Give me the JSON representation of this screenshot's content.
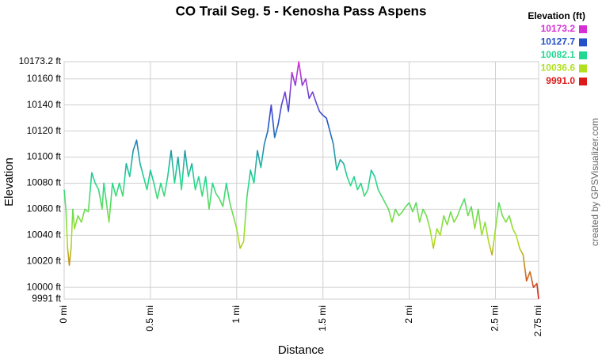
{
  "chart_data": {
    "type": "line",
    "title": "CO Trail Seg. 5 - Kenosha Pass Aspens",
    "x_label": "Distance",
    "y_label": "Elevation",
    "credit": "created by GPSVisualizer.com",
    "legend_title": "Elevation (ft)",
    "colorscale": [
      {
        "value": 10173.2,
        "color": "#d62fd6"
      },
      {
        "value": 10127.7,
        "color": "#2450c8"
      },
      {
        "value": 10082.1,
        "color": "#20d890"
      },
      {
        "value": 10036.6,
        "color": "#b0e020"
      },
      {
        "value": 9991,
        "label": "9991.0",
        "color": "#dd1a1a"
      }
    ],
    "grid": true,
    "xlim": [
      0,
      2.75
    ],
    "ylim": [
      9991,
      10173.2
    ],
    "xticks": [
      {
        "value": 0,
        "label": "0 mi"
      },
      {
        "value": 0.5,
        "label": "0.5 mi"
      },
      {
        "value": 1,
        "label": "1 mi"
      },
      {
        "value": 1.5,
        "label": "1.5 mi"
      },
      {
        "value": 2,
        "label": "2 mi"
      },
      {
        "value": 2.5,
        "label": "2.5 mi"
      },
      {
        "value": 2.75,
        "label": "2.75 mi"
      }
    ],
    "yticks": [
      {
        "value": 9991,
        "label": "9991 ft"
      },
      {
        "value": 10000,
        "label": "10000 ft"
      },
      {
        "value": 10020,
        "label": "10020 ft"
      },
      {
        "value": 10040,
        "label": "10040 ft"
      },
      {
        "value": 10060,
        "label": "10060 ft"
      },
      {
        "value": 10080,
        "label": "10080 ft"
      },
      {
        "value": 10100,
        "label": "10100 ft"
      },
      {
        "value": 10120,
        "label": "10120 ft"
      },
      {
        "value": 10140,
        "label": "10140 ft"
      },
      {
        "value": 10160,
        "label": "10160 ft"
      },
      {
        "value": 10173.2,
        "label": "10173.2 ft"
      }
    ],
    "x": [
      0,
      0.01,
      0.02,
      0.03,
      0.04,
      0.05,
      0.06,
      0.08,
      0.1,
      0.12,
      0.14,
      0.16,
      0.18,
      0.2,
      0.22,
      0.23,
      0.25,
      0.26,
      0.28,
      0.3,
      0.32,
      0.34,
      0.36,
      0.38,
      0.4,
      0.42,
      0.44,
      0.46,
      0.48,
      0.5,
      0.52,
      0.54,
      0.56,
      0.58,
      0.6,
      0.62,
      0.64,
      0.66,
      0.68,
      0.7,
      0.72,
      0.74,
      0.76,
      0.78,
      0.8,
      0.82,
      0.84,
      0.86,
      0.88,
      0.9,
      0.92,
      0.94,
      0.96,
      0.98,
      1.0,
      1.02,
      1.04,
      1.06,
      1.08,
      1.1,
      1.12,
      1.14,
      1.16,
      1.18,
      1.2,
      1.22,
      1.24,
      1.26,
      1.28,
      1.3,
      1.32,
      1.34,
      1.36,
      1.38,
      1.4,
      1.42,
      1.44,
      1.46,
      1.48,
      1.5,
      1.52,
      1.54,
      1.56,
      1.58,
      1.6,
      1.62,
      1.64,
      1.66,
      1.68,
      1.7,
      1.72,
      1.74,
      1.76,
      1.78,
      1.8,
      1.82,
      1.84,
      1.86,
      1.88,
      1.9,
      1.92,
      1.94,
      1.96,
      1.98,
      2.0,
      2.02,
      2.04,
      2.06,
      2.08,
      2.1,
      2.12,
      2.14,
      2.16,
      2.18,
      2.2,
      2.22,
      2.24,
      2.26,
      2.28,
      2.3,
      2.32,
      2.34,
      2.36,
      2.38,
      2.4,
      2.42,
      2.44,
      2.46,
      2.48,
      2.5,
      2.52,
      2.54,
      2.56,
      2.58,
      2.6,
      2.62,
      2.64,
      2.66,
      2.68,
      2.7,
      2.72,
      2.74,
      2.75
    ],
    "values": [
      10075,
      10060,
      10030,
      10017,
      10030,
      10060,
      10045,
      10055,
      10050,
      10060,
      10058,
      10088,
      10080,
      10075,
      10060,
      10080,
      10060,
      10050,
      10080,
      10070,
      10080,
      10070,
      10095,
      10085,
      10105,
      10113,
      10095,
      10085,
      10075,
      10090,
      10080,
      10068,
      10080,
      10070,
      10085,
      10105,
      10080,
      10100,
      10075,
      10105,
      10085,
      10095,
      10075,
      10085,
      10070,
      10085,
      10060,
      10080,
      10072,
      10068,
      10062,
      10080,
      10065,
      10055,
      10045,
      10030,
      10035,
      10070,
      10090,
      10080,
      10105,
      10092,
      10110,
      10120,
      10140,
      10115,
      10125,
      10140,
      10150,
      10135,
      10165,
      10155,
      10173.2,
      10155,
      10160,
      10145,
      10150,
      10142,
      10135,
      10132,
      10130,
      10120,
      10110,
      10090,
      10098,
      10095,
      10085,
      10078,
      10085,
      10075,
      10080,
      10070,
      10075,
      10090,
      10085,
      10075,
      10070,
      10065,
      10060,
      10050,
      10060,
      10055,
      10058,
      10062,
      10065,
      10058,
      10065,
      10050,
      10060,
      10055,
      10045,
      10030,
      10045,
      10040,
      10055,
      10048,
      10058,
      10050,
      10055,
      10062,
      10068,
      10055,
      10062,
      10045,
      10060,
      10040,
      10050,
      10035,
      10025,
      10045,
      10065,
      10055,
      10050,
      10055,
      10045,
      10040,
      10030,
      10025,
      10005,
      10012,
      10000,
      10003,
      9991
    ]
  }
}
